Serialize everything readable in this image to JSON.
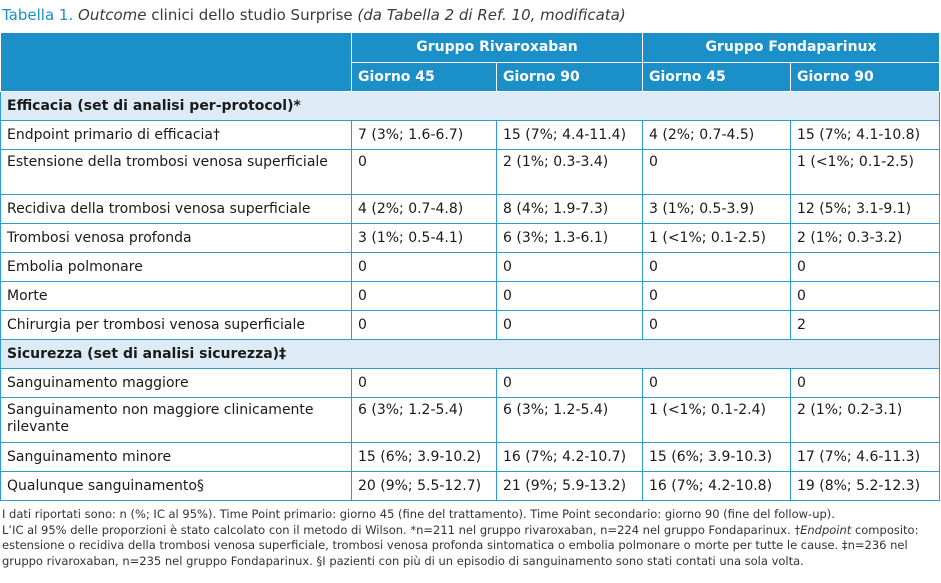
{
  "title": {
    "label": "Tabella 1.",
    "italic1": "Outcome",
    "text": " clinici dello studio Surprise ",
    "italic2": "(da Tabella 2 di Ref. 10, modificata)"
  },
  "groups": [
    "Gruppo Rivaroxaban",
    "Gruppo Fondaparinux"
  ],
  "days": [
    "Giorno 45",
    "Giorno 90",
    "Giorno 45",
    "Giorno 90"
  ],
  "sections": [
    {
      "heading": "Efficacia (set di analisi per-protocol)*",
      "rows": [
        {
          "label": "Endpoint primario di efficacia†",
          "cells": [
            "7 (3%; 1.6-6.7)",
            "15 (7%; 4.4-11.4)",
            "4 (2%; 0.7-4.5)",
            "15 (7%; 4.1-10.8)"
          ]
        },
        {
          "label": "Estensione della trombosi venosa superficiale",
          "cells": [
            "0",
            "2 (1%; 0.3-3.4)",
            "0",
            "1 (<1%; 0.1-2.5)"
          ]
        },
        {
          "label": "Recidiva della trombosi venosa superficiale",
          "cells": [
            "4 (2%; 0.7-4.8)",
            "8 (4%; 1.9-7.3)",
            "3 (1%; 0.5-3.9)",
            "12 (5%; 3.1-9.1)"
          ]
        },
        {
          "label": "Trombosi venosa profonda",
          "cells": [
            "3 (1%; 0.5-4.1)",
            "6 (3%; 1.3-6.1)",
            "1 (<1%; 0.1-2.5)",
            "2 (1%; 0.3-3.2)"
          ]
        },
        {
          "label": "Embolia polmonare",
          "cells": [
            "0",
            "0",
            "0",
            "0"
          ]
        },
        {
          "label": "Morte",
          "cells": [
            "0",
            "0",
            "0",
            "0"
          ]
        },
        {
          "label": "Chirurgia per trombosi venosa superficiale",
          "cells": [
            "0",
            "0",
            "0",
            "2"
          ]
        }
      ]
    },
    {
      "heading": "Sicurezza (set di analisi sicurezza)‡",
      "rows": [
        {
          "label": "Sanguinamento maggiore",
          "cells": [
            "0",
            "0",
            "0",
            "0"
          ]
        },
        {
          "label": "Sanguinamento non maggiore clinicamente rilevante",
          "cells": [
            "6 (3%; 1.2-5.4)",
            "6 (3%; 1.2-5.4)",
            "1 (<1%; 0.1-2.4)",
            "2 (1%; 0.2-3.1)"
          ]
        },
        {
          "label": "Sanguinamento minore",
          "cells": [
            "15 (6%; 3.9-10.2)",
            "16 (7%; 4.2-10.7)",
            "15 (6%; 3.9-10.3)",
            "17 (7%; 4.6-11.3)"
          ]
        },
        {
          "label": "Qualunque sanguinamento§",
          "cells": [
            "20 (9%; 5.5-12.7)",
            "21 (9%; 5.9-13.2)",
            "16 (7%; 4.2-10.8)",
            "19 (8%; 5.2-12.3)"
          ]
        }
      ]
    }
  ],
  "footnote": {
    "a": "I dati riportati sono: n (%; IC al 95%). Time Point primario: giorno 45 (fine del trattamento). Time Point secondario: giorno 90 (fine del follow-up).",
    "b": "L’IC al 95% delle proporzioni è stato calcolato con il metodo di Wilson. *n=211 nel gruppo rivaroxaban, n=224 nel gruppo Fondaparinux. †",
    "b_it": "Endpoint",
    "b2": " composito: estensione o recidiva della trombosi venosa superficiale, trombosi venosa profonda sintomatica o embolia polmonare o morte per tutte le cause. ‡n=236 nel gruppo rivaroxaban, n=235 nel gruppo Fondaparinux. §I pazienti con più di un episodio di sanguinamento sono stati contati una sola volta."
  }
}
